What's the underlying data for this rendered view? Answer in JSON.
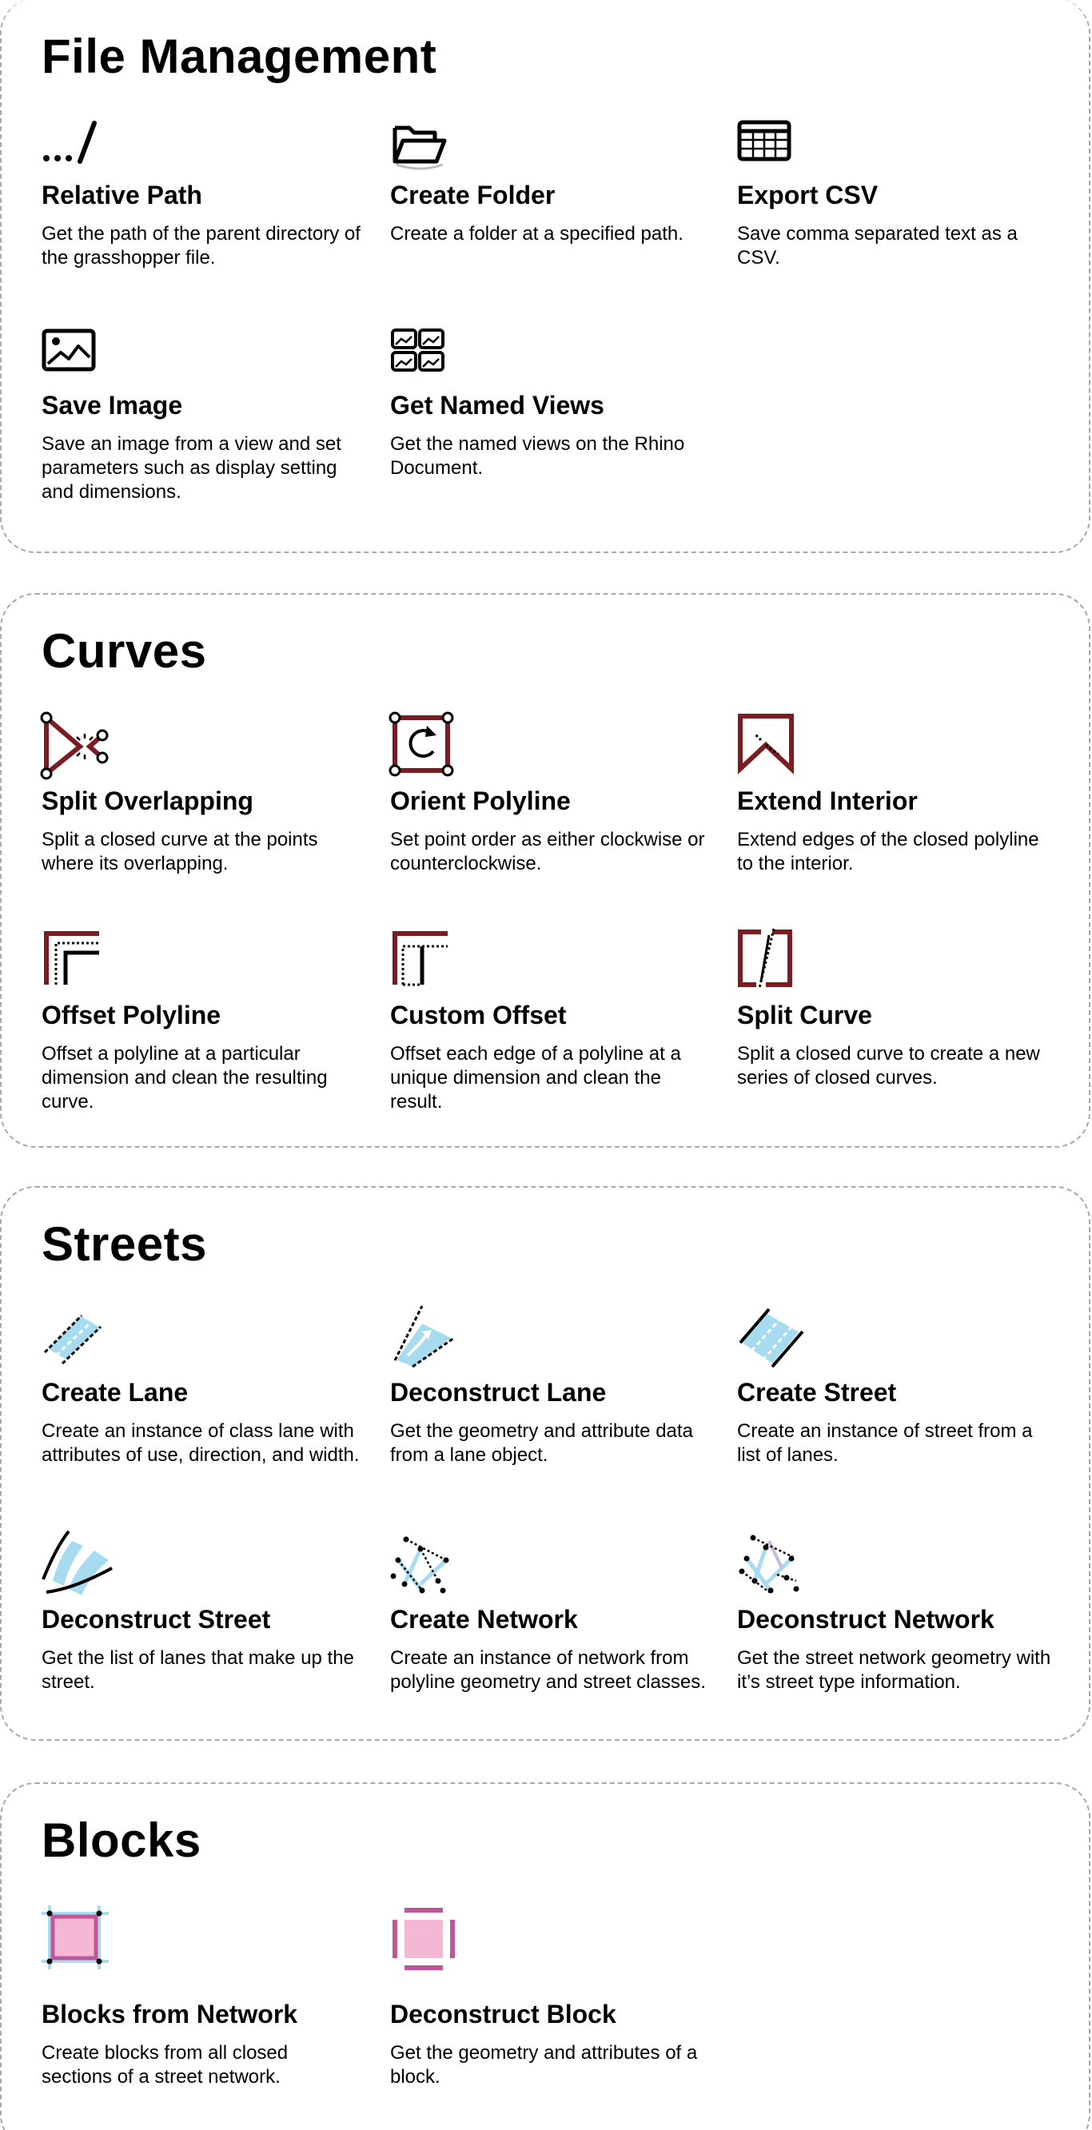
{
  "colors": {
    "curve_red": "#7a1c22",
    "street_blue": "#a7dbef",
    "block_pink": "#f4b8d4",
    "block_magenta": "#c0569a"
  },
  "sections": [
    {
      "title": "File Management",
      "cards": [
        {
          "icon": "relative-path-icon",
          "title": "Relative Path",
          "desc": "Get the path of the parent directory of the grasshopper file."
        },
        {
          "icon": "folder-open-icon",
          "title": "Create Folder",
          "desc": "Create a folder at a specified path."
        },
        {
          "icon": "table-csv-icon",
          "title": "Export CSV",
          "desc": "Save comma separated text as a CSV."
        },
        {
          "icon": "image-icon",
          "title": "Save Image",
          "desc": "Save an image from a view and set parameters such as display setting and dimensions."
        },
        {
          "icon": "image-grid-icon",
          "title": "Get Named Views",
          "desc": "Get the named views on the Rhino Document."
        }
      ]
    },
    {
      "title": "Curves",
      "cards": [
        {
          "icon": "split-overlapping-icon",
          "title": "Split Overlapping",
          "desc": "Split a closed curve at the points where its overlapping."
        },
        {
          "icon": "orient-polyline-icon",
          "title": "Orient Polyline",
          "desc": "Set point order as either clockwise or counterclockwise."
        },
        {
          "icon": "extend-interior-icon",
          "title": "Extend Interior",
          "desc": "Extend edges of the closed polyline to the interior."
        },
        {
          "icon": "offset-polyline-icon",
          "title": "Offset Polyline",
          "desc": "Offset a polyline at a particular dimension and clean the resulting curve."
        },
        {
          "icon": "custom-offset-icon",
          "title": "Custom Offset",
          "desc": "Offset each edge of a polyline at a unique dimension and clean the result."
        },
        {
          "icon": "split-curve-icon",
          "title": "Split Curve",
          "desc": "Split a closed curve to create a new series of closed curves."
        }
      ]
    },
    {
      "title": "Streets",
      "cards": [
        {
          "icon": "create-lane-icon",
          "title": "Create Lane",
          "desc": "Create an instance of class lane with attributes of use, direction, and width."
        },
        {
          "icon": "deconstruct-lane-icon",
          "title": "Deconstruct Lane",
          "desc": "Get the geometry and attribute data from a lane object."
        },
        {
          "icon": "create-street-icon",
          "title": "Create Street",
          "desc": "Create an instance of street from a list of lanes."
        },
        {
          "icon": "deconstruct-street-icon",
          "title": "Deconstruct Street",
          "desc": "Get the list of lanes that make up the street."
        },
        {
          "icon": "create-network-icon",
          "title": "Create Network",
          "desc": "Create an instance of network from polyline geometry and street classes."
        },
        {
          "icon": "deconstruct-network-icon",
          "title": "Deconstruct Network",
          "desc": "Get the street network geometry with it’s street type information."
        }
      ]
    },
    {
      "title": "Blocks",
      "cards": [
        {
          "icon": "blocks-from-network-icon",
          "title": "Blocks from Network",
          "desc": "Create blocks from all closed sections of a street network."
        },
        {
          "icon": "deconstruct-block-icon",
          "title": "Deconstruct Block",
          "desc": "Get the geometry and attributes of a block."
        }
      ]
    }
  ]
}
